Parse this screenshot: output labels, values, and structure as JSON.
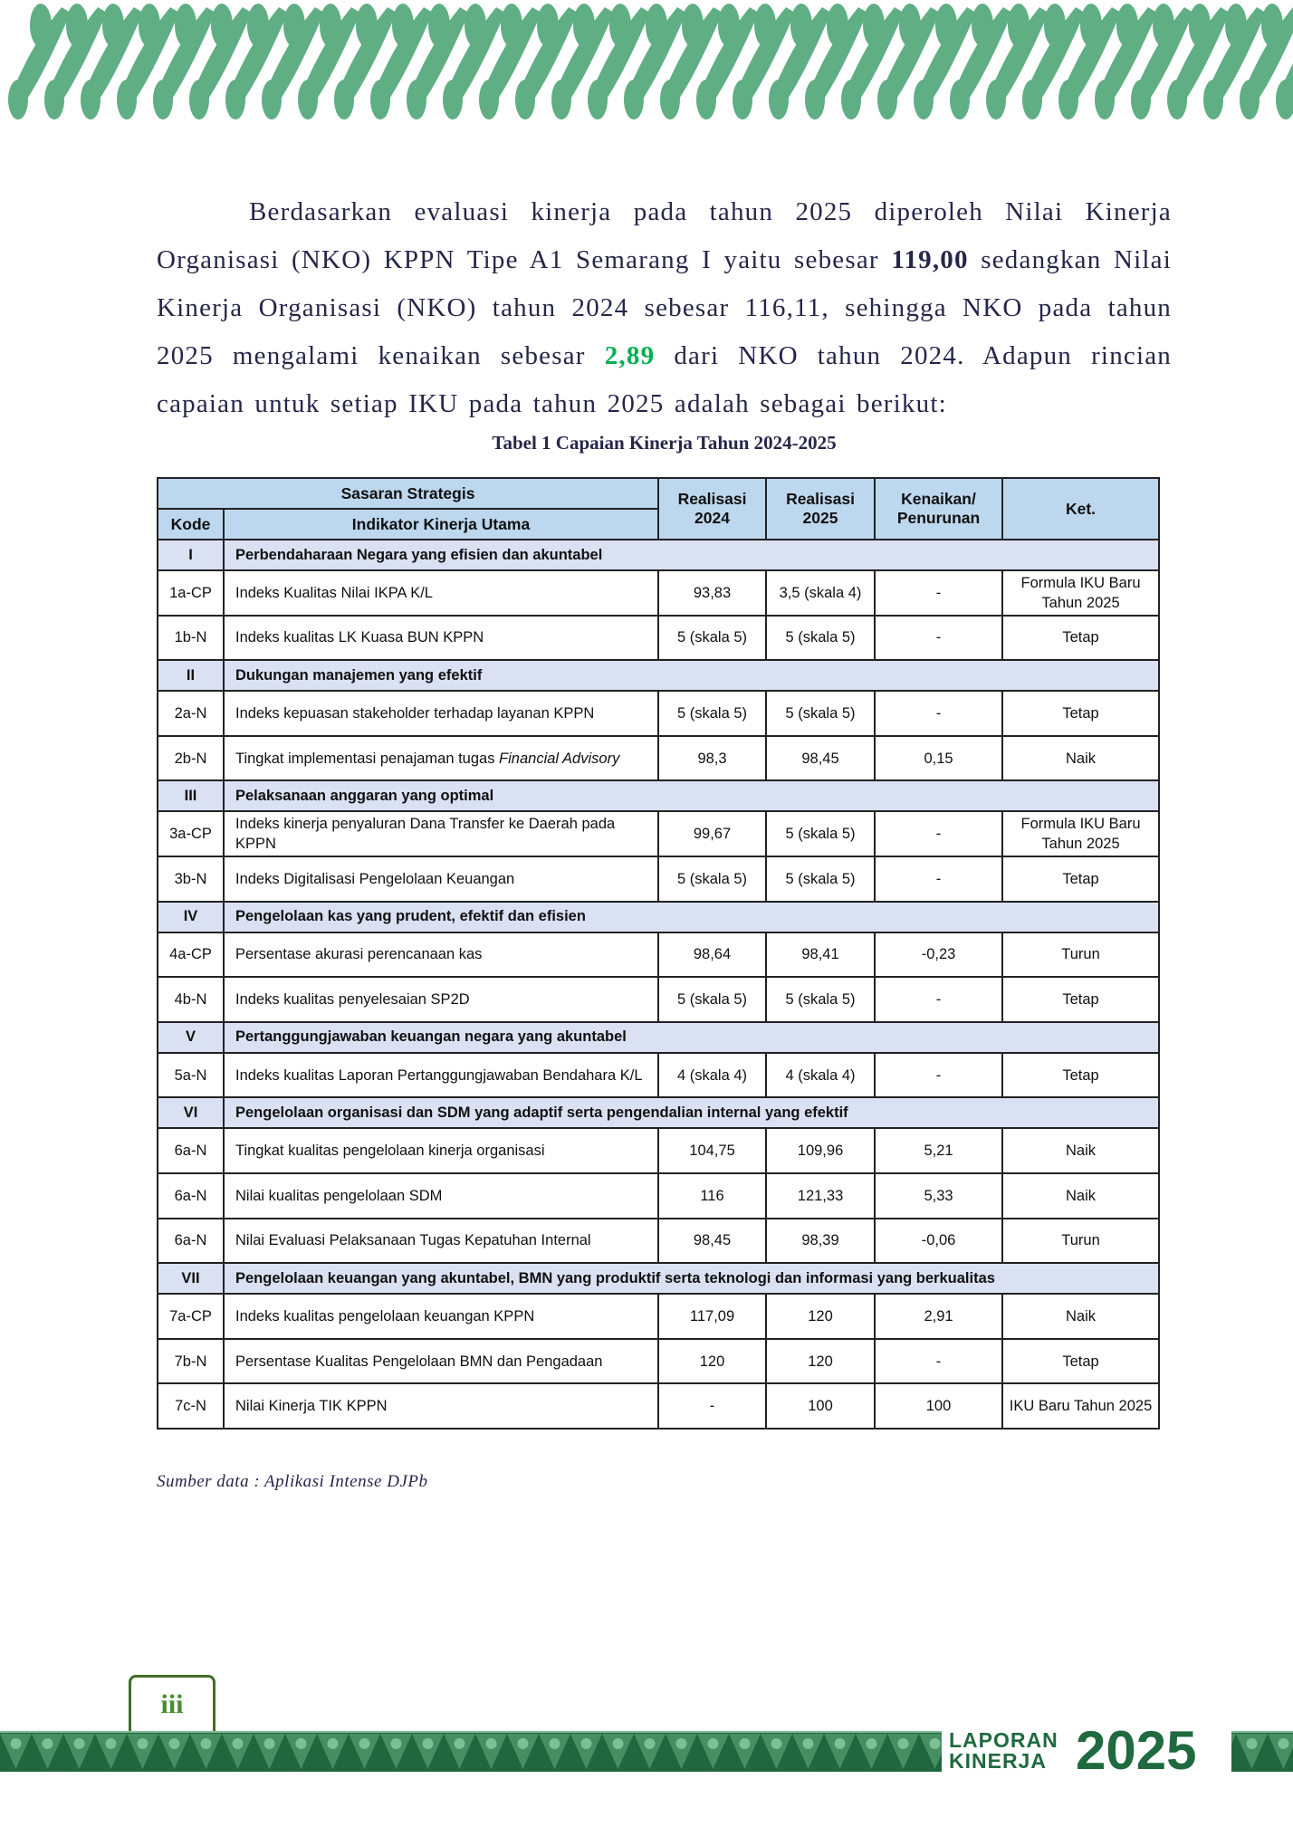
{
  "colors": {
    "banner": "#5fae84",
    "header": "#bdd7ee",
    "section": "#d9e1f2",
    "footer": "#22663f",
    "highlight": "#00b050"
  },
  "paragraph": {
    "p1": "Berdasarkan evaluasi kinerja pada tahun 2025 diperoleh Nilai Kinerja Organisasi (NKO) KPPN Tipe A1 Semarang I yaitu sebesar ",
    "b1": "119,00",
    "p2": " sedangkan Nilai Kinerja Organisasi (NKO) tahun 2024 sebesar 116,11, sehingga NKO pada tahun 2025 mengalami kenaikan sebesar ",
    "g1": "2,89",
    "p3": " dari NKO tahun 2024. Adapun rincian capaian untuk setiap IKU pada tahun 2025 adalah sebagai berikut:"
  },
  "caption": "Tabel 1 Capaian Kinerja Tahun 2024-2025",
  "table": {
    "headers": {
      "sasaran": "Sasaran Strategis",
      "kode": "Kode",
      "iku": "Indikator Kinerja Utama",
      "r2024": "Realisasi 2024",
      "r2025": "Realisasi 2025",
      "kenaikan": "Kenaikan/ Penurunan",
      "ket": "Ket."
    },
    "sections": [
      {
        "no": "I",
        "title": "Perbendaharaan Negara yang efisien dan akuntabel",
        "rows": [
          [
            "1a-CP",
            "Indeks Kualitas Nilai IKPA K/L",
            "93,83",
            "3,5 (skala 4)",
            "-",
            "Formula IKU Baru Tahun 2025"
          ],
          [
            "1b-N",
            "Indeks kualitas LK Kuasa BUN KPPN",
            "5 (skala 5)",
            "5 (skala 5)",
            "-",
            "Tetap"
          ]
        ]
      },
      {
        "no": "II",
        "title": "Dukungan manajemen yang efektif",
        "rows": [
          [
            "2a-N",
            "Indeks kepuasan stakeholder terhadap layanan KPPN",
            "5 (skala 5)",
            "5 (skala 5)",
            "-",
            "Tetap"
          ],
          [
            "2b-N",
            "Tingkat implementasi penajaman tugas Financial Advisory",
            "98,3",
            "98,45",
            "0,15",
            "Naik"
          ]
        ]
      },
      {
        "no": "III",
        "title": "Pelaksanaan anggaran yang optimal",
        "rows": [
          [
            "3a-CP",
            "Indeks kinerja penyaluran Dana Transfer ke Daerah pada KPPN",
            "99,67",
            "5 (skala 5)",
            "-",
            "Formula IKU Baru Tahun 2025"
          ],
          [
            "3b-N",
            "Indeks Digitalisasi Pengelolaan Keuangan",
            "5 (skala 5)",
            "5 (skala 5)",
            "-",
            "Tetap"
          ]
        ]
      },
      {
        "no": "IV",
        "title": "Pengelolaan kas yang prudent, efektif dan efisien",
        "rows": [
          [
            "4a-CP",
            "Persentase akurasi perencanaan kas",
            "98,64",
            "98,41",
            "-0,23",
            "Turun"
          ],
          [
            "4b-N",
            "Indeks kualitas penyelesaian SP2D",
            "5 (skala 5)",
            "5 (skala 5)",
            "-",
            "Tetap"
          ]
        ]
      },
      {
        "no": "V",
        "title": "Pertanggungjawaban keuangan negara yang akuntabel",
        "rows": [
          [
            "5a-N",
            "Indeks kualitas Laporan Pertanggungjawaban Bendahara K/L",
            "4 (skala 4)",
            "4 (skala 4)",
            "-",
            "Tetap"
          ]
        ]
      },
      {
        "no": "VI",
        "title": "Pengelolaan organisasi dan SDM yang adaptif serta pengendalian internal yang efektif",
        "rows": [
          [
            "6a-N",
            "Tingkat kualitas pengelolaan kinerja organisasi",
            "104,75",
            "109,96",
            "5,21",
            "Naik"
          ],
          [
            "6a-N",
            "Nilai kualitas pengelolaan SDM",
            "116",
            "121,33",
            "5,33",
            "Naik"
          ],
          [
            "6a-N",
            "Nilai Evaluasi Pelaksanaan Tugas Kepatuhan Internal",
            "98,45",
            "98,39",
            "-0,06",
            "Turun"
          ]
        ]
      },
      {
        "no": "VII",
        "title": "Pengelolaan keuangan yang akuntabel, BMN yang produktif serta teknologi dan informasi yang berkualitas",
        "rows": [
          [
            "7a-CP",
            "Indeks kualitas pengelolaan keuangan KPPN",
            "117,09",
            "120",
            "2,91",
            "Naik"
          ],
          [
            "7b-N",
            "Persentase Kualitas Pengelolaan BMN dan Pengadaan",
            "120",
            "120",
            "-",
            "Tetap"
          ],
          [
            "7c-N",
            "Nilai Kinerja TIK KPPN",
            "-",
            "100",
            "100",
            "IKU Baru Tahun 2025"
          ]
        ]
      }
    ]
  },
  "source": "Sumber data : Aplikasi Intense DJPb",
  "footer": {
    "page_number": "iii",
    "logo_line1": "LAPORAN",
    "logo_line2": "KINERJA",
    "logo_year": "2025"
  }
}
